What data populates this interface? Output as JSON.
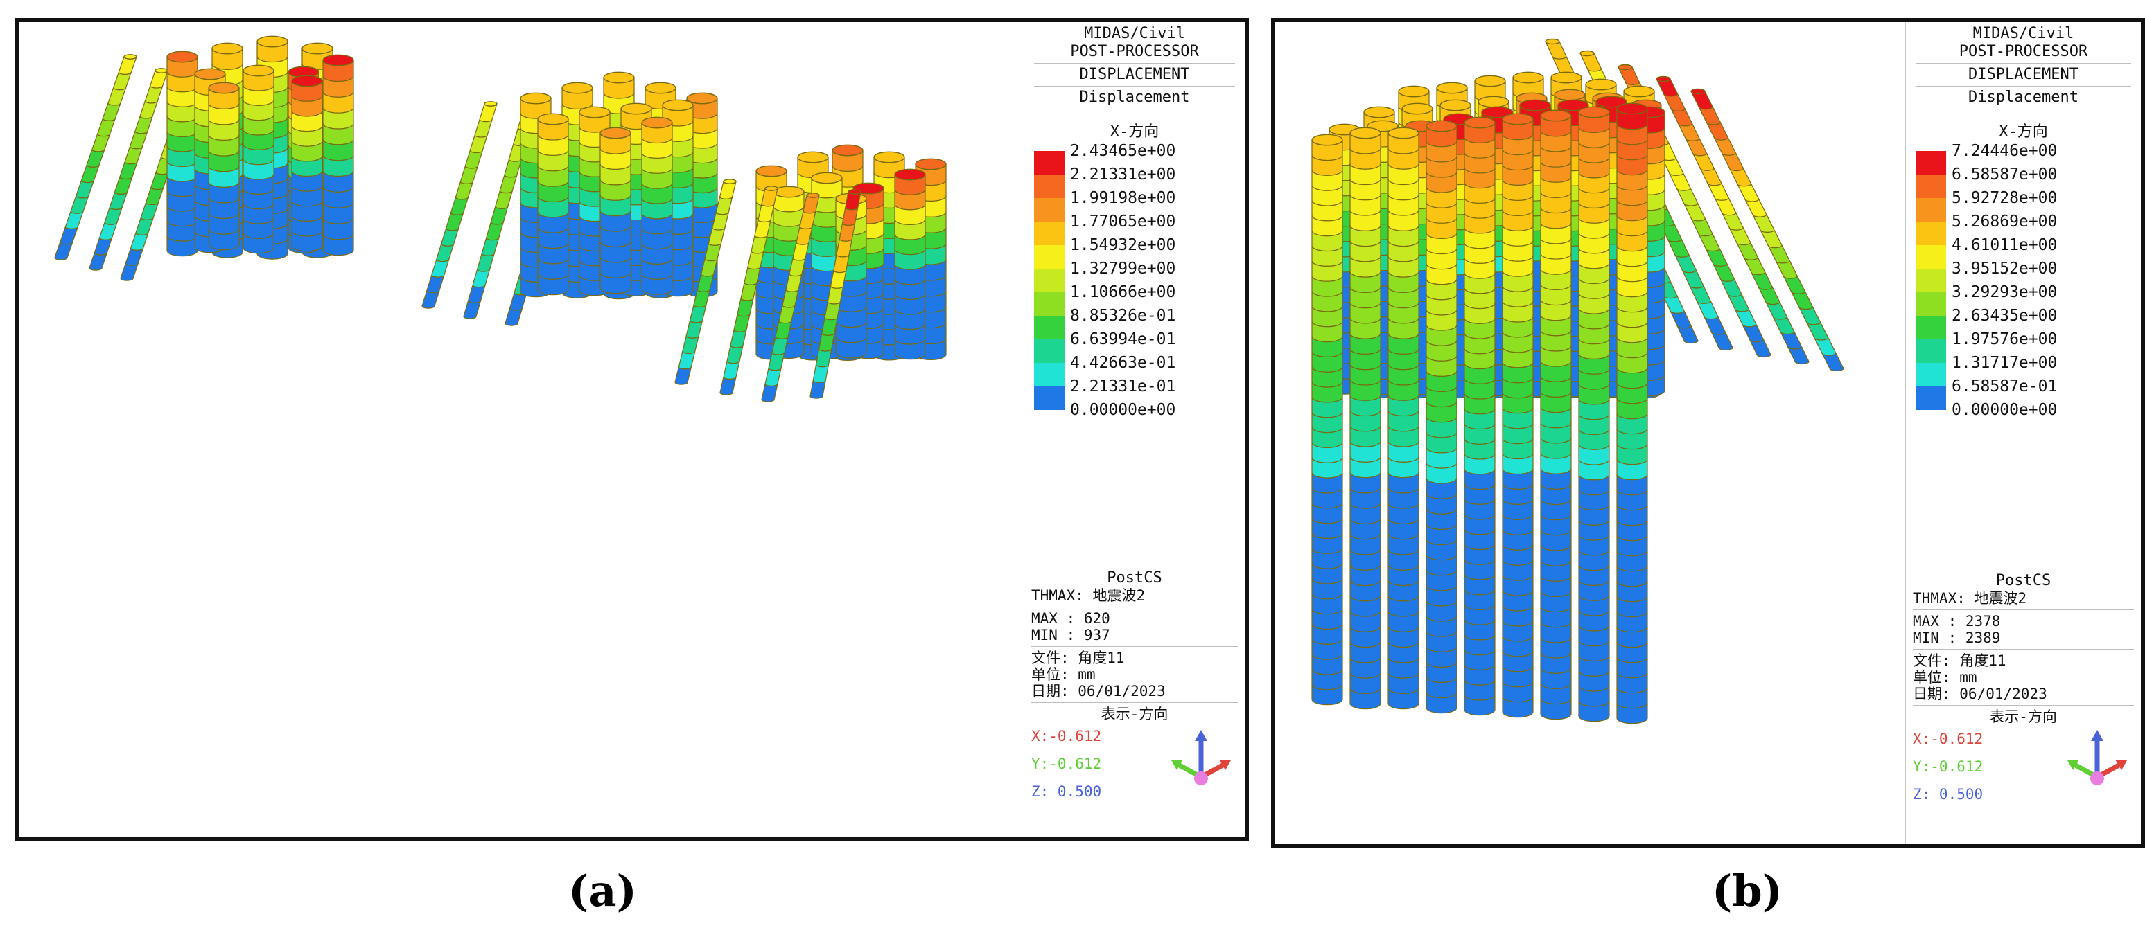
{
  "panels": [
    {
      "id": "a",
      "caption": "(a)",
      "header": {
        "software": "MIDAS/Civil",
        "processor": "POST-PROCESSOR",
        "result_type": "DISPLACEMENT",
        "component": "Displacement",
        "direction": "X-方向"
      },
      "legend": {
        "values": [
          "2.43465e+00",
          "2.21331e+00",
          "1.99198e+00",
          "1.77065e+00",
          "1.54932e+00",
          "1.32799e+00",
          "1.10666e+00",
          "8.85326e-01",
          "6.63994e-01",
          "4.42663e-01",
          "2.21331e-01",
          "0.00000e+00"
        ]
      },
      "info": {
        "stage": "PostCS",
        "thmax": "THMAX: 地震波2",
        "max": "MAX : 620",
        "min": "MIN : 937",
        "file": "文件: 角度11",
        "unit": "单位: mm",
        "date": "日期: 06/01/2023",
        "orientation_title": "表示-方向",
        "x": "X:-0.612",
        "y": "Y:-0.612",
        "z": "Z: 0.500"
      }
    },
    {
      "id": "b",
      "caption": "(b)",
      "header": {
        "software": "MIDAS/Civil",
        "processor": "POST-PROCESSOR",
        "result_type": "DISPLACEMENT",
        "component": "Displacement",
        "direction": "X-方向"
      },
      "legend": {
        "values": [
          "7.24446e+00",
          "6.58587e+00",
          "5.92728e+00",
          "5.26869e+00",
          "4.61011e+00",
          "3.95152e+00",
          "3.29293e+00",
          "2.63435e+00",
          "1.97576e+00",
          "1.31717e+00",
          "6.58587e-01",
          "0.00000e+00"
        ]
      },
      "info": {
        "stage": "PostCS",
        "thmax": "THMAX: 地震波2",
        "max": "MAX : 2378",
        "min": "MIN : 2389",
        "file": "文件: 角度11",
        "unit": "单位: mm",
        "date": "日期: 06/01/2023",
        "orientation_title": "表示-方向",
        "x": "X:-0.612",
        "y": "Y:-0.612",
        "z": "Z: 0.500"
      }
    }
  ],
  "colors": {
    "scale": [
      "#e8141a",
      "#f4681f",
      "#f7941d",
      "#fbc413",
      "#f6ef1a",
      "#c6ea1f",
      "#8ede22",
      "#35d23d",
      "#1bd591",
      "#20e3d6",
      "#1f78e6"
    ],
    "x_axis": "#e0433a",
    "y_axis": "#5fcf35",
    "z_axis": "#4a63d8",
    "origin": "#e87ee0"
  }
}
